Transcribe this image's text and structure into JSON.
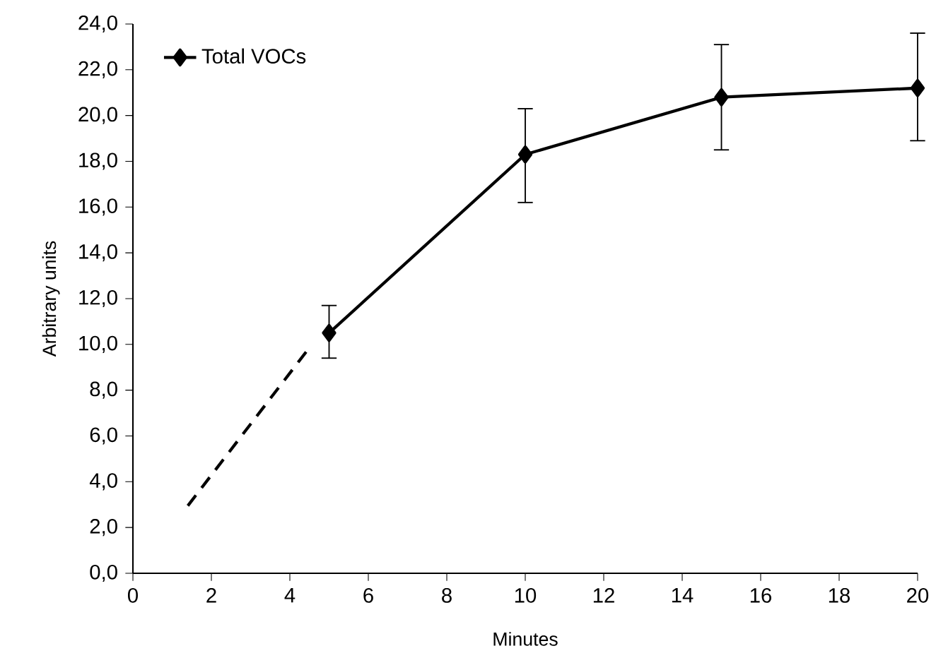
{
  "chart_data": {
    "type": "line",
    "xlabel": "Minutes",
    "ylabel": "Arbitrary units",
    "series": [
      {
        "name": "Total VOCs",
        "color": "#000000",
        "x": [
          5,
          10,
          15,
          20
        ],
        "values": [
          10.5,
          18.3,
          20.8,
          21.2
        ],
        "errors": [
          [
            9.4,
            11.7
          ],
          [
            16.2,
            20.3
          ],
          [
            18.5,
            23.1
          ],
          [
            18.9,
            23.6
          ]
        ],
        "marker": "diamond",
        "line_style": "solid"
      },
      {
        "color": "#000000",
        "x": [
          1.4,
          4.45
        ],
        "values": [
          2.95,
          9.75
        ],
        "marker": "none",
        "line_style": "dashed"
      }
    ],
    "xlim": [
      0,
      20
    ],
    "xticks": [
      0,
      2,
      4,
      6,
      8,
      10,
      12,
      14,
      16,
      18,
      20
    ],
    "ylim": [
      0,
      24
    ],
    "yticks": [
      {
        "value": 0,
        "label": "0,0"
      },
      {
        "value": 2,
        "label": "2,0"
      },
      {
        "value": 4,
        "label": "4,0"
      },
      {
        "value": 6,
        "label": "6,0"
      },
      {
        "value": 8,
        "label": "8,0"
      },
      {
        "value": 10,
        "label": "10,0"
      },
      {
        "value": 12,
        "label": "12,0"
      },
      {
        "value": 14,
        "label": "14,0"
      },
      {
        "value": 16,
        "label": "16,0"
      },
      {
        "value": 18,
        "label": "18,0"
      },
      {
        "value": 20,
        "label": "20,0"
      },
      {
        "value": 22,
        "label": "22,0"
      },
      {
        "value": 24,
        "label": "24,0"
      }
    ],
    "grid": false,
    "legend": "top left"
  }
}
